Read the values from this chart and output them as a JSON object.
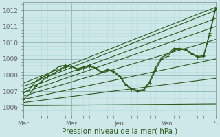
{
  "xlabel": "Pression niveau de la mer( hPa )",
  "bg_color": "#cce8e8",
  "grid_color_minor": "#b8d8d8",
  "grid_color_major": "#99bbbb",
  "line_color": "#2d5a1b",
  "ylim": [
    1005.5,
    1012.5
  ],
  "xlim": [
    0,
    96
  ],
  "yticks": [
    1006,
    1007,
    1008,
    1009,
    1010,
    1011,
    1012
  ],
  "xtick_positions": [
    0,
    24,
    48,
    72,
    96
  ],
  "xtick_labels": [
    "Mar",
    "Mer",
    "Jeu",
    "Ven",
    "S"
  ],
  "straight_lines": [
    [
      0,
      1006.1,
      96,
      1006.2
    ],
    [
      0,
      1006.3,
      96,
      1007.8
    ],
    [
      0,
      1006.5,
      96,
      1009.0
    ],
    [
      0,
      1006.7,
      96,
      1010.2
    ],
    [
      0,
      1006.9,
      96,
      1011.0
    ],
    [
      0,
      1007.1,
      96,
      1011.5
    ],
    [
      0,
      1007.3,
      96,
      1012.0
    ],
    [
      0,
      1007.5,
      96,
      1012.2
    ]
  ],
  "wiggly1": [
    0,
    1006.9,
    3,
    1007.1,
    6,
    1007.6,
    9,
    1007.85,
    12,
    1008.0,
    15,
    1008.3,
    18,
    1008.55,
    21,
    1008.6,
    24,
    1008.55,
    27,
    1008.3,
    30,
    1008.4,
    33,
    1008.55,
    36,
    1008.4,
    39,
    1008.15,
    42,
    1008.3,
    45,
    1008.2,
    48,
    1007.9,
    51,
    1007.4,
    54,
    1007.1,
    57,
    1007.0,
    60,
    1007.05,
    63,
    1007.5,
    66,
    1008.3,
    69,
    1009.0,
    72,
    1009.15,
    75,
    1009.55,
    78,
    1009.6,
    81,
    1009.55,
    84,
    1009.3,
    87,
    1009.1,
    90,
    1009.15,
    93,
    1010.5,
    96,
    1012.1
  ],
  "wiggly2": [
    0,
    1006.5,
    3,
    1006.8,
    6,
    1007.3,
    9,
    1007.6,
    12,
    1007.9,
    15,
    1008.1,
    18,
    1008.3,
    21,
    1008.5,
    24,
    1008.55,
    27,
    1008.4,
    30,
    1008.5,
    33,
    1008.6,
    36,
    1008.45,
    39,
    1008.2,
    42,
    1008.35,
    45,
    1008.25,
    48,
    1007.95,
    51,
    1007.45,
    54,
    1007.15,
    57,
    1007.05,
    60,
    1007.1,
    63,
    1007.6,
    66,
    1008.45,
    69,
    1009.1,
    72,
    1009.25,
    75,
    1009.65,
    78,
    1009.65,
    81,
    1009.6,
    84,
    1009.35,
    87,
    1009.15,
    90,
    1009.2,
    93,
    1010.6,
    96,
    1012.15
  ]
}
